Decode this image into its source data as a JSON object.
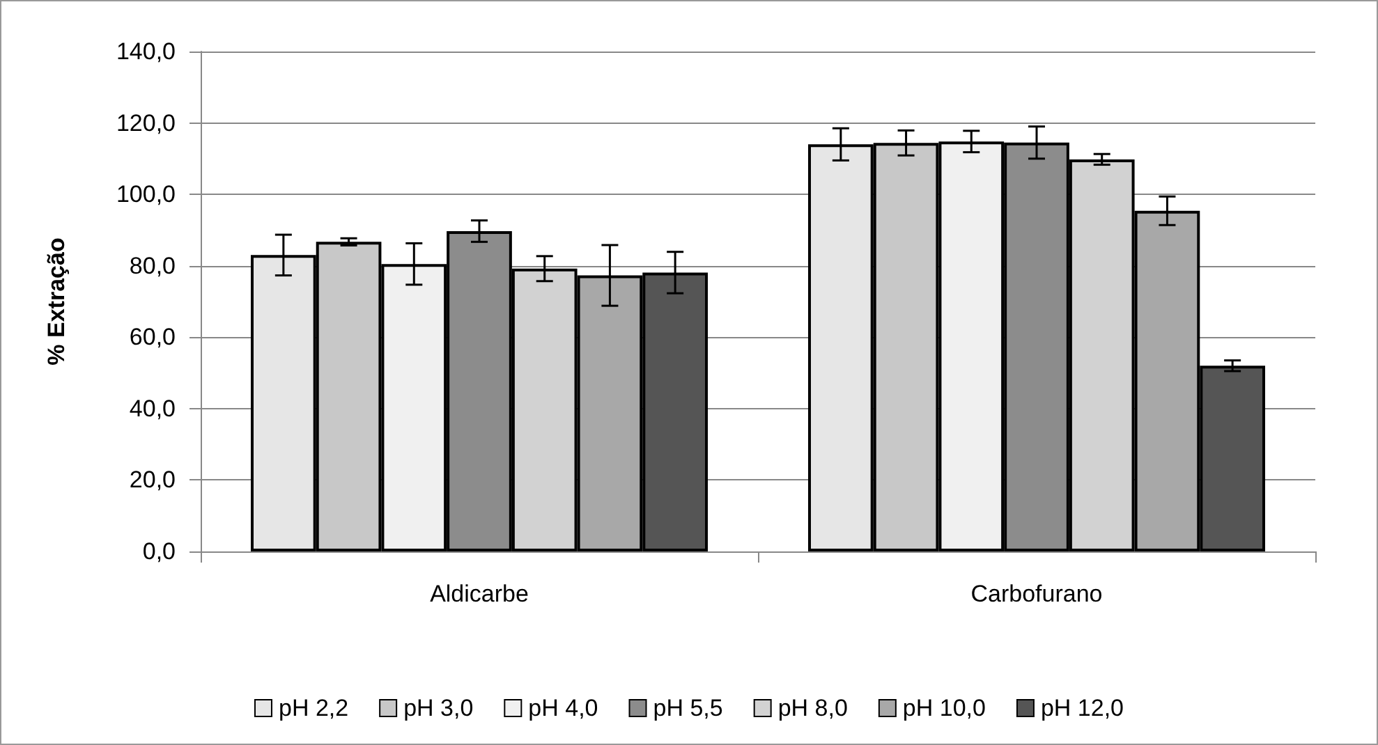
{
  "chart_data": {
    "type": "bar",
    "ylabel": "% Extração",
    "categories": [
      "Aldicarbe",
      "Carbofurano"
    ],
    "series": [
      {
        "name": "pH 2,2",
        "color": "#e6e6e6",
        "values": [
          83.0,
          114.0
        ],
        "errors": [
          5.7,
          4.5
        ]
      },
      {
        "name": "pH 3,0",
        "color": "#c8c8c8",
        "values": [
          86.7,
          114.4
        ],
        "errors": [
          1.0,
          3.5
        ]
      },
      {
        "name": "pH 4,0",
        "color": "#f0f0f0",
        "values": [
          80.5,
          114.8
        ],
        "errors": [
          5.8,
          3.0
        ]
      },
      {
        "name": "pH 5,5",
        "color": "#8c8c8c",
        "values": [
          89.7,
          114.5
        ],
        "errors": [
          3.0,
          4.5
        ]
      },
      {
        "name": "pH 8,0",
        "color": "#d2d2d2",
        "values": [
          79.2,
          109.8
        ],
        "errors": [
          3.5,
          1.5
        ]
      },
      {
        "name": "pH 10,0",
        "color": "#a8a8a8",
        "values": [
          77.3,
          95.4
        ],
        "errors": [
          8.5,
          4.0
        ]
      },
      {
        "name": "pH 12,0",
        "color": "#555555",
        "values": [
          78.1,
          52.0
        ],
        "errors": [
          5.8,
          1.5
        ]
      }
    ],
    "ylim": [
      0,
      140
    ],
    "yticks": [
      {
        "value": 0,
        "label": "0,0"
      },
      {
        "value": 20,
        "label": "20,0"
      },
      {
        "value": 40,
        "label": "40,0"
      },
      {
        "value": 60,
        "label": "60,0"
      },
      {
        "value": 80,
        "label": "80,0"
      },
      {
        "value": 100,
        "label": "100,0"
      },
      {
        "value": 120,
        "label": "120,0"
      },
      {
        "value": 140,
        "label": "140,0"
      }
    ],
    "grid": "y",
    "legend": "bottom"
  }
}
